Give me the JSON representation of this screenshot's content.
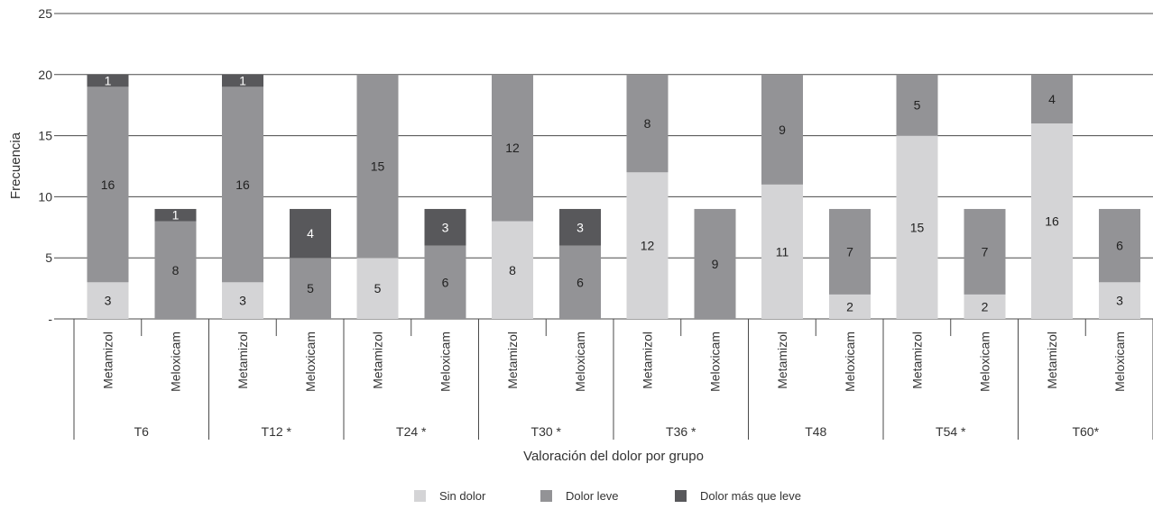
{
  "chart_data": {
    "type": "bar",
    "stacked": true,
    "xlabel": "Valoración del dolor por grupo",
    "ylabel": "Frecuencia",
    "ylim": [
      0,
      25
    ],
    "yticks": [
      "-",
      "5",
      "10",
      "15",
      "20",
      "25"
    ],
    "grid": true,
    "legend_position": "bottom",
    "groups": [
      "T6",
      "T12 *",
      "T24 *",
      "T30 *",
      "T36 *",
      "T48",
      "T54 *",
      "T60*"
    ],
    "bar_labels": [
      "Metamizol",
      "Meloxicam"
    ],
    "categories": [
      "T6 Metamizol",
      "T6 Meloxicam",
      "T12 * Metamizol",
      "T12 * Meloxicam",
      "T24 * Metamizol",
      "T24 * Meloxicam",
      "T30 * Metamizol",
      "T30 * Meloxicam",
      "T36 * Metamizol",
      "T36 * Meloxicam",
      "T48 Metamizol",
      "T48 Meloxicam",
      "T54 * Metamizol",
      "T54 * Meloxicam",
      "T60* Metamizol",
      "T60* Meloxicam"
    ],
    "series": [
      {
        "name": "Sin dolor",
        "color": "#d4d4d6",
        "values": [
          3,
          0,
          3,
          0,
          5,
          0,
          8,
          0,
          12,
          0,
          11,
          2,
          15,
          2,
          16,
          3
        ]
      },
      {
        "name": "Dolor leve",
        "color": "#939396",
        "values": [
          16,
          8,
          16,
          5,
          15,
          6,
          12,
          6,
          8,
          9,
          9,
          7,
          5,
          7,
          4,
          6
        ]
      },
      {
        "name": "Dolor más que leve",
        "color": "#58585b",
        "values": [
          1,
          1,
          1,
          4,
          0,
          3,
          0,
          3,
          0,
          0,
          0,
          0,
          0,
          0,
          0,
          0
        ]
      }
    ]
  }
}
